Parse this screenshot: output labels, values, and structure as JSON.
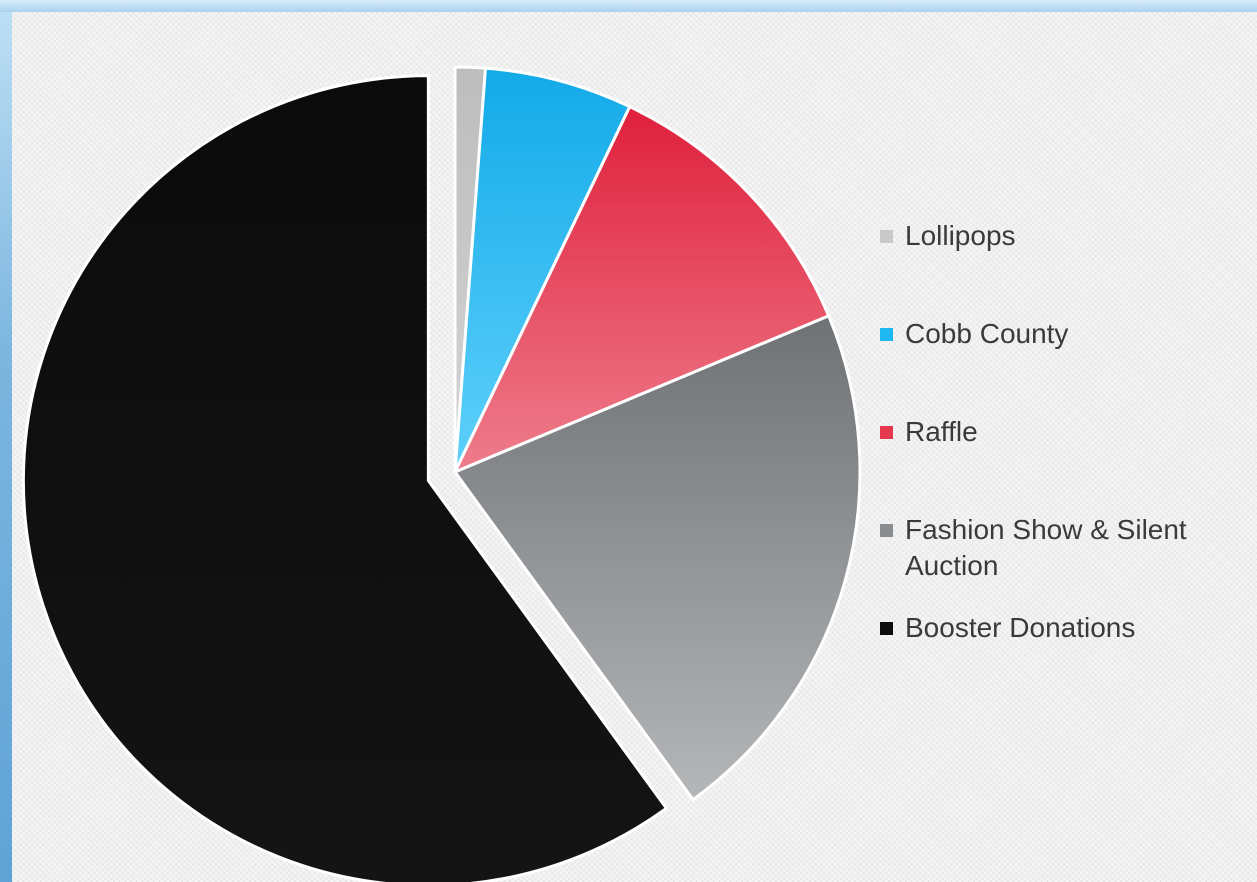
{
  "chart_data": {
    "type": "pie",
    "title": "",
    "legend_position": "right",
    "slices": [
      {
        "label": "Lollipops",
        "value": 1.2,
        "color_top": "#bdbdbd",
        "color_bottom": "#d4d4d4",
        "exploded": false
      },
      {
        "label": "Cobb County",
        "value": 5.9,
        "color_top": "#12aae8",
        "color_bottom": "#5fd0fb",
        "exploded": false
      },
      {
        "label": "Raffle",
        "value": 11.6,
        "color_top": "#e0203c",
        "color_bottom": "#ee7d8c",
        "exploded": false
      },
      {
        "label": "Fashion Show & Silent Auction",
        "value": 21.3,
        "color_top": "#6f7275",
        "color_bottom": "#b4b6b8",
        "exploded": false
      },
      {
        "label": "Booster Donations",
        "value": 60.0,
        "color_top": "#0b0b0b",
        "color_bottom": "#141414",
        "exploded": true
      }
    ]
  },
  "legend": {
    "items": [
      {
        "label": "Lollipops",
        "color": "#c9c9c9"
      },
      {
        "label": "Cobb County",
        "color": "#1fb7f0"
      },
      {
        "label": "Raffle",
        "color": "#e4384f"
      },
      {
        "label": "Fashion Show & Silent Auction",
        "color": "#8a8d90"
      },
      {
        "label": "Booster Donations",
        "color": "#0c0c0c"
      }
    ]
  }
}
